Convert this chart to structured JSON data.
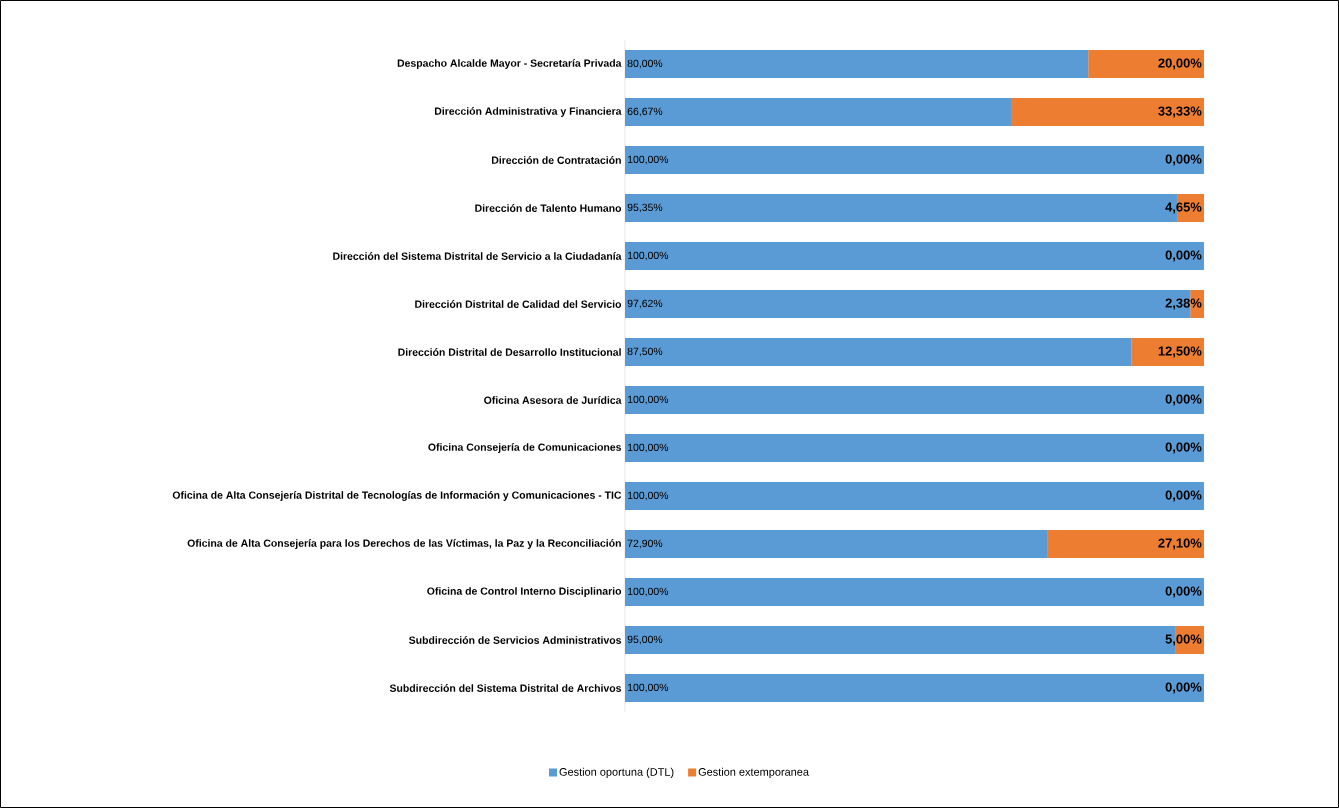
{
  "chart_data": {
    "type": "bar",
    "orientation": "horizontal",
    "stacked": true,
    "legend": "bottom",
    "categories": [
      "Despacho Alcalde Mayor - Secretaría Privada",
      "Dirección Administrativa y Financiera",
      "Dirección de Contratación",
      "Dirección de Talento Humano",
      "Dirección del Sistema Distrital de Servicio a la Ciudadanía",
      "Dirección Distrital de Calidad del Servicio",
      "Dirección Distrital de Desarrollo Institucional",
      "Oficina Asesora de Jurídica",
      "Oficina Consejería de Comunicaciones",
      "Oficina de Alta Consejería Distrital de Tecnologías de Información y Comunicaciones - TIC",
      "Oficina de Alta Consejería para los Derechos de las Víctimas, la Paz y la Reconciliación",
      "Oficina de Control Interno Disciplinario",
      "Subdirección de Servicios Administrativos",
      "Subdirección del Sistema Distrital de Archivos"
    ],
    "series": [
      {
        "name": "Gestion oportuna (DTL)",
        "color": "#5b9bd5",
        "values": [
          80.0,
          66.67,
          100.0,
          95.35,
          100.0,
          97.62,
          87.5,
          100.0,
          100.0,
          100.0,
          72.9,
          100.0,
          95.0,
          100.0
        ],
        "value_labels": [
          "80,00%",
          "66,67%",
          "100,00%",
          "95,35%",
          "100,00%",
          "97,62%",
          "87,50%",
          "100,00%",
          "100,00%",
          "100,00%",
          "72,90%",
          "100,00%",
          "95,00%",
          "100,00%"
        ]
      },
      {
        "name": "Gestion extemporanea",
        "color": "#ed7d31",
        "values": [
          20.0,
          33.33,
          0.0,
          4.65,
          0.0,
          2.38,
          12.5,
          0.0,
          0.0,
          0.0,
          27.1,
          0.0,
          5.0,
          0.0
        ],
        "value_labels": [
          "20,00%",
          "33,33%",
          "0,00%",
          "4,65%",
          "0,00%",
          "2,38%",
          "12,50%",
          "0,00%",
          "0,00%",
          "0,00%",
          "27,10%",
          "0,00%",
          "5,00%",
          "0,00%"
        ]
      }
    ]
  }
}
